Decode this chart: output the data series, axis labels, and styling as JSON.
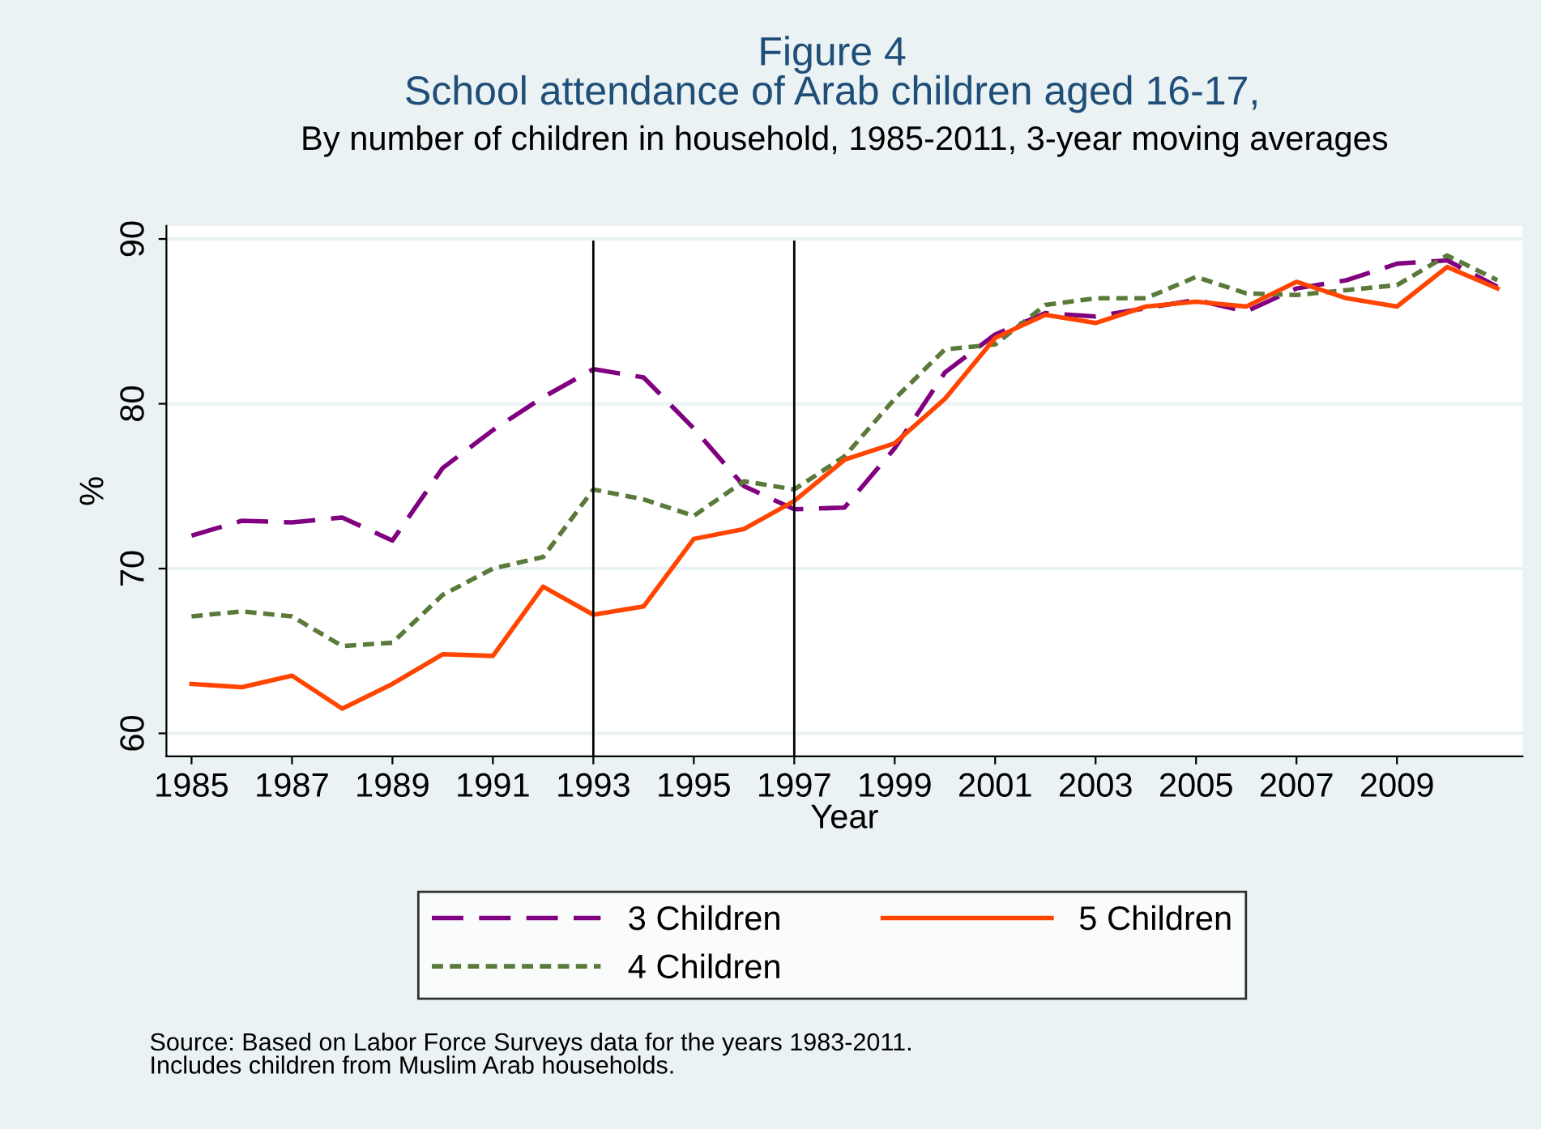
{
  "chart_data": {
    "type": "line",
    "title": "Figure 4\nSchool attendance of Arab children aged 16-17,",
    "subtitle": "By number of children in household, 1985-2011, 3-year moving averages",
    "xlabel": "Year",
    "ylabel": "%",
    "x": [
      1985,
      1986,
      1987,
      1988,
      1989,
      1990,
      1991,
      1992,
      1993,
      1994,
      1995,
      1996,
      1997,
      1998,
      1999,
      2000,
      2001,
      2002,
      2003,
      2004,
      2005,
      2006,
      2007,
      2008,
      2009,
      2010,
      2011
    ],
    "series": [
      {
        "name": "3 Children",
        "color": "#800080",
        "line_style": "dashed",
        "values": [
          72.0,
          72.9,
          72.8,
          73.1,
          71.7,
          76.1,
          78.4,
          80.4,
          82.1,
          81.6,
          78.5,
          75.0,
          73.6,
          73.7,
          77.3,
          81.9,
          84.2,
          85.5,
          85.3,
          85.8,
          86.3,
          85.6,
          87.0,
          87.5,
          88.5,
          88.7,
          87.1
        ]
      },
      {
        "name": "4 Children",
        "color": "#5a7a3a",
        "line_style": "dotted",
        "values": [
          67.1,
          67.4,
          67.1,
          65.3,
          65.5,
          68.4,
          70.0,
          70.7,
          74.8,
          74.2,
          73.2,
          75.3,
          74.8,
          76.8,
          80.3,
          83.3,
          83.6,
          86.0,
          86.4,
          86.4,
          87.7,
          86.7,
          86.6,
          86.9,
          87.2,
          89.0,
          87.5
        ]
      },
      {
        "name": "5 Children",
        "color": "#ff4500",
        "line_style": "solid",
        "values": [
          63.0,
          62.8,
          63.5,
          61.5,
          63.0,
          64.8,
          64.7,
          68.9,
          67.2,
          67.7,
          71.8,
          72.4,
          74.1,
          76.6,
          77.6,
          80.3,
          84.0,
          85.4,
          84.9,
          85.9,
          86.2,
          85.9,
          87.4,
          86.4,
          85.9,
          88.3,
          87.0
        ]
      }
    ],
    "xlim": [
      1984.5,
      2011.5
    ],
    "ylim": [
      58.6,
      90.8
    ],
    "xticks": [
      1985,
      1987,
      1989,
      1991,
      1993,
      1995,
      1997,
      1999,
      2001,
      2003,
      2005,
      2007,
      2009
    ],
    "yticks": [
      60,
      70,
      80,
      90
    ],
    "grid": "y",
    "legend": "bottom",
    "marker": "none",
    "ref_lines": [
      {
        "axis": "x",
        "value": 1993,
        "color": "#000000"
      },
      {
        "axis": "x",
        "value": 1997,
        "color": "#000000"
      }
    ],
    "annotations": [
      "Source: Based on Labor Force Surveys data for the years 1983-2011.\nIncludes children from Muslim Arab households."
    ]
  }
}
